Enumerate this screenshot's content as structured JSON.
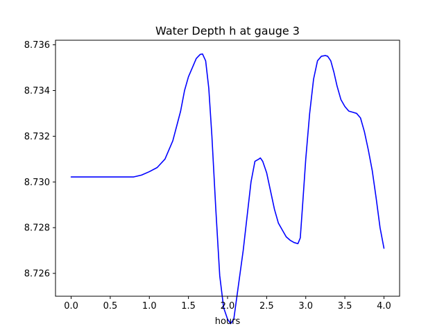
{
  "chart_data": {
    "type": "line",
    "title": "Water Depth h at gauge 3",
    "xlabel": "hours",
    "ylabel": "",
    "xlim": [
      -0.2,
      4.2
    ],
    "ylim": [
      8.725,
      8.7362
    ],
    "xticks": [
      0.0,
      0.5,
      1.0,
      1.5,
      2.0,
      2.5,
      3.0,
      3.5,
      4.0
    ],
    "xtick_labels": [
      "0.0",
      "0.5",
      "1.0",
      "1.5",
      "2.0",
      "2.5",
      "3.0",
      "3.5",
      "4.0"
    ],
    "yticks": [
      8.726,
      8.728,
      8.73,
      8.732,
      8.734,
      8.736
    ],
    "ytick_labels": [
      "8.726",
      "8.728",
      "8.730",
      "8.732",
      "8.734",
      "8.736"
    ],
    "grid": false,
    "series": [
      {
        "color": "#0000ff",
        "x": [
          0.0,
          0.1,
          0.2,
          0.3,
          0.4,
          0.5,
          0.6,
          0.7,
          0.8,
          0.9,
          1.0,
          1.1,
          1.2,
          1.3,
          1.4,
          1.45,
          1.5,
          1.55,
          1.6,
          1.65,
          1.68,
          1.72,
          1.76,
          1.8,
          1.85,
          1.9,
          1.95,
          2.0,
          2.04,
          2.08,
          2.12,
          2.16,
          2.2,
          2.25,
          2.3,
          2.35,
          2.4,
          2.42,
          2.45,
          2.5,
          2.55,
          2.6,
          2.65,
          2.7,
          2.75,
          2.8,
          2.85,
          2.9,
          2.93,
          2.96,
          3.0,
          3.05,
          3.1,
          3.15,
          3.2,
          3.25,
          3.28,
          3.32,
          3.36,
          3.4,
          3.45,
          3.5,
          3.55,
          3.6,
          3.65,
          3.7,
          3.75,
          3.8,
          3.85,
          3.9,
          3.95,
          4.0
        ],
        "y": [
          8.73022,
          8.73022,
          8.73022,
          8.73022,
          8.73022,
          8.73022,
          8.73022,
          8.73022,
          8.73022,
          8.7303,
          8.73045,
          8.73063,
          8.731,
          8.7318,
          8.7331,
          8.734,
          8.7346,
          8.735,
          8.7354,
          8.73558,
          8.7356,
          8.7353,
          8.7341,
          8.732,
          8.7288,
          8.7259,
          8.7245,
          8.724,
          8.7238,
          8.724,
          8.725,
          8.726,
          8.727,
          8.7285,
          8.73,
          8.7309,
          8.731,
          8.73105,
          8.7309,
          8.7304,
          8.7296,
          8.7288,
          8.7282,
          8.7279,
          8.7276,
          8.72745,
          8.72735,
          8.7273,
          8.72755,
          8.729,
          8.731,
          8.733,
          8.7345,
          8.7353,
          8.7355,
          8.73553,
          8.7355,
          8.7353,
          8.7348,
          8.7342,
          8.7336,
          8.7333,
          8.7331,
          8.73305,
          8.733,
          8.7328,
          8.7322,
          8.7314,
          8.7305,
          8.7293,
          8.728,
          8.7271
        ]
      }
    ]
  }
}
